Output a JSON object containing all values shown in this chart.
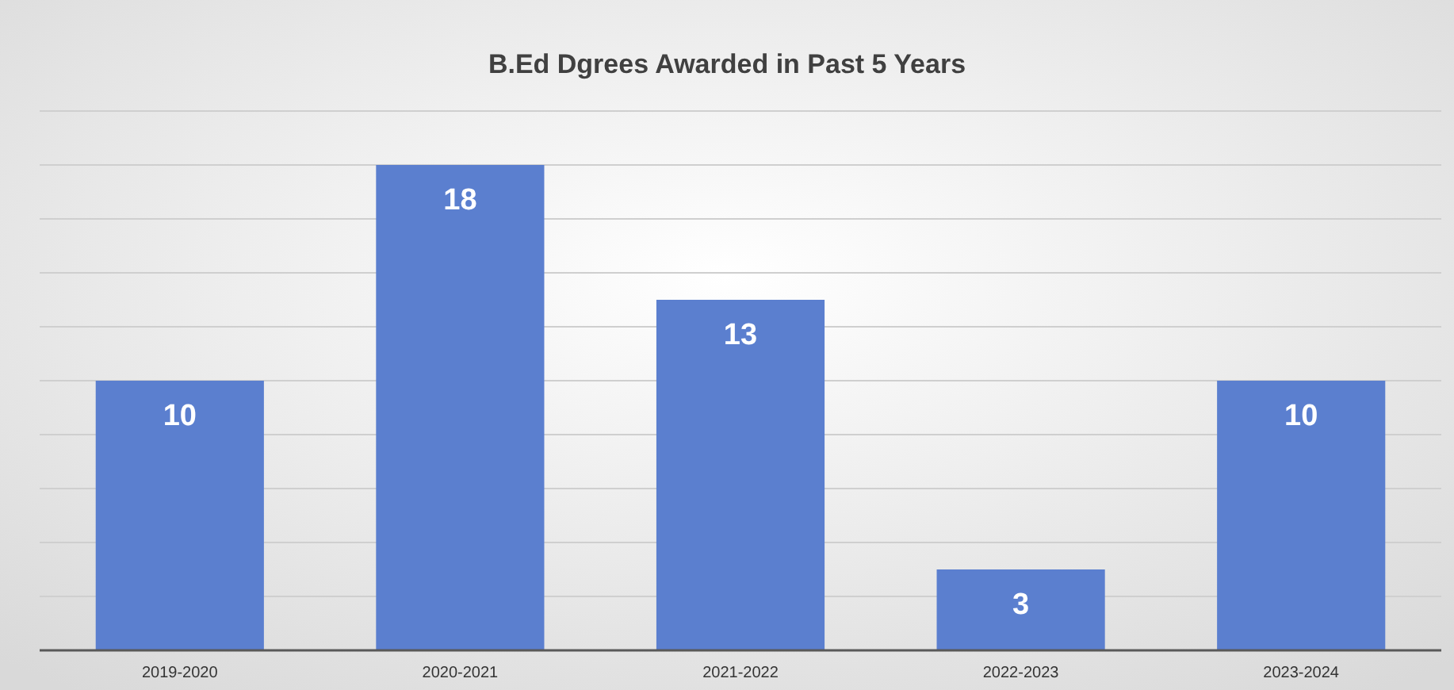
{
  "chart_data": {
    "type": "bar",
    "title": "B.Ed Dgrees Awarded in Past 5 Years",
    "categories": [
      "2019-2020",
      "2020-2021",
      "2021-2022",
      "2022-2023",
      "2023-2024"
    ],
    "values": [
      10,
      18,
      13,
      3,
      10
    ],
    "color": "#5b7fcf",
    "ylim": [
      0,
      20
    ],
    "yticks": [
      {
        "value": 0,
        "label": null
      },
      {
        "value": 2,
        "label": null
      },
      {
        "value": 4,
        "label": null
      },
      {
        "value": 6,
        "label": null
      },
      {
        "value": 8,
        "label": null
      },
      {
        "value": 10,
        "label": null
      },
      {
        "value": 12,
        "label": null
      },
      {
        "value": 14,
        "label": null
      },
      {
        "value": 16,
        "label": null
      },
      {
        "value": 18,
        "label": null
      },
      {
        "value": 20,
        "label": null
      }
    ],
    "grid": "y",
    "tick_labels": "x",
    "data_labels": true
  }
}
